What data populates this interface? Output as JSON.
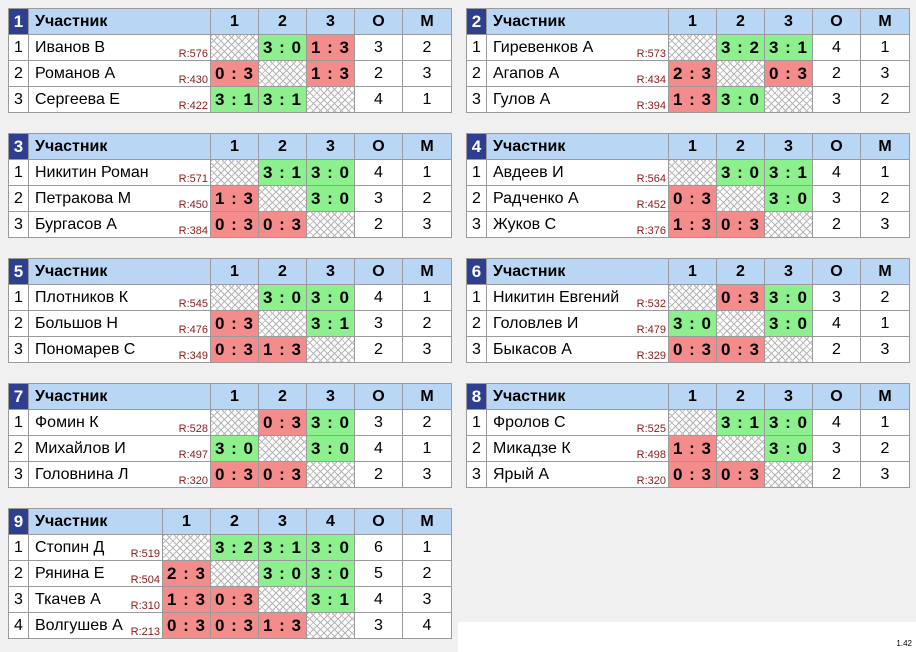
{
  "header": {
    "participant": "Участник",
    "points": "О",
    "place": "М"
  },
  "groups": [
    {
      "num": "1",
      "players": [
        {
          "row": "1",
          "name": "Иванов В",
          "rating": "R:576",
          "cells": [
            {
              "type": "self",
              "text": ""
            },
            {
              "type": "win",
              "text": "3 : 0"
            },
            {
              "type": "loss",
              "text": "1 : 3"
            }
          ],
          "points": "3",
          "place": "2"
        },
        {
          "row": "2",
          "name": "Романов А",
          "rating": "R:430",
          "cells": [
            {
              "type": "loss",
              "text": "0 : 3"
            },
            {
              "type": "self",
              "text": ""
            },
            {
              "type": "loss",
              "text": "1 : 3"
            }
          ],
          "points": "2",
          "place": "3"
        },
        {
          "row": "3",
          "name": "Сергеева Е",
          "rating": "R:422",
          "cells": [
            {
              "type": "win",
              "text": "3 : 1"
            },
            {
              "type": "win",
              "text": "3 : 1"
            },
            {
              "type": "self",
              "text": ""
            }
          ],
          "points": "4",
          "place": "1"
        }
      ]
    },
    {
      "num": "2",
      "players": [
        {
          "row": "1",
          "name": "Гиревенков А",
          "rating": "R:573",
          "cells": [
            {
              "type": "self",
              "text": ""
            },
            {
              "type": "win",
              "text": "3 : 2"
            },
            {
              "type": "win",
              "text": "3 : 1"
            }
          ],
          "points": "4",
          "place": "1"
        },
        {
          "row": "2",
          "name": "Агапов А",
          "rating": "R:434",
          "cells": [
            {
              "type": "loss",
              "text": "2 : 3"
            },
            {
              "type": "self",
              "text": ""
            },
            {
              "type": "loss",
              "text": "0 : 3"
            }
          ],
          "points": "2",
          "place": "3"
        },
        {
          "row": "3",
          "name": "Гулов А",
          "rating": "R:394",
          "cells": [
            {
              "type": "loss",
              "text": "1 : 3"
            },
            {
              "type": "win",
              "text": "3 : 0"
            },
            {
              "type": "self",
              "text": ""
            }
          ],
          "points": "3",
          "place": "2"
        }
      ]
    },
    {
      "num": "3",
      "players": [
        {
          "row": "1",
          "name": "Никитин Роман",
          "rating": "R:571",
          "cells": [
            {
              "type": "self",
              "text": ""
            },
            {
              "type": "win",
              "text": "3 : 1"
            },
            {
              "type": "win",
              "text": "3 : 0"
            }
          ],
          "points": "4",
          "place": "1"
        },
        {
          "row": "2",
          "name": "Петракова М",
          "rating": "R:450",
          "cells": [
            {
              "type": "loss",
              "text": "1 : 3"
            },
            {
              "type": "self",
              "text": ""
            },
            {
              "type": "win",
              "text": "3 : 0"
            }
          ],
          "points": "3",
          "place": "2"
        },
        {
          "row": "3",
          "name": "Бургасов А",
          "rating": "R:384",
          "cells": [
            {
              "type": "loss",
              "text": "0 : 3"
            },
            {
              "type": "loss",
              "text": "0 : 3"
            },
            {
              "type": "self",
              "text": ""
            }
          ],
          "points": "2",
          "place": "3"
        }
      ]
    },
    {
      "num": "4",
      "players": [
        {
          "row": "1",
          "name": "Авдеев И",
          "rating": "R:564",
          "cells": [
            {
              "type": "self",
              "text": ""
            },
            {
              "type": "win",
              "text": "3 : 0"
            },
            {
              "type": "win",
              "text": "3 : 1"
            }
          ],
          "points": "4",
          "place": "1"
        },
        {
          "row": "2",
          "name": "Радченко А",
          "rating": "R:452",
          "cells": [
            {
              "type": "loss",
              "text": "0 : 3"
            },
            {
              "type": "self",
              "text": ""
            },
            {
              "type": "win",
              "text": "3 : 0"
            }
          ],
          "points": "3",
          "place": "2"
        },
        {
          "row": "3",
          "name": "Жуков С",
          "rating": "R:376",
          "cells": [
            {
              "type": "loss",
              "text": "1 : 3"
            },
            {
              "type": "loss",
              "text": "0 : 3"
            },
            {
              "type": "self",
              "text": ""
            }
          ],
          "points": "2",
          "place": "3"
        }
      ]
    },
    {
      "num": "5",
      "players": [
        {
          "row": "1",
          "name": "Плотников К",
          "rating": "R:545",
          "cells": [
            {
              "type": "self",
              "text": ""
            },
            {
              "type": "win",
              "text": "3 : 0"
            },
            {
              "type": "win",
              "text": "3 : 0"
            }
          ],
          "points": "4",
          "place": "1"
        },
        {
          "row": "2",
          "name": "Большов Н",
          "rating": "R:476",
          "cells": [
            {
              "type": "loss",
              "text": "0 : 3"
            },
            {
              "type": "self",
              "text": ""
            },
            {
              "type": "win",
              "text": "3 : 1"
            }
          ],
          "points": "3",
          "place": "2"
        },
        {
          "row": "3",
          "name": "Пономарев С",
          "rating": "R:349",
          "cells": [
            {
              "type": "loss",
              "text": "0 : 3"
            },
            {
              "type": "loss",
              "text": "1 : 3"
            },
            {
              "type": "self",
              "text": ""
            }
          ],
          "points": "2",
          "place": "3"
        }
      ]
    },
    {
      "num": "6",
      "players": [
        {
          "row": "1",
          "name": "Никитин Евгений",
          "rating": "R:532",
          "cells": [
            {
              "type": "self",
              "text": ""
            },
            {
              "type": "loss",
              "text": "0 : 3"
            },
            {
              "type": "win",
              "text": "3 : 0"
            }
          ],
          "points": "3",
          "place": "2"
        },
        {
          "row": "2",
          "name": "Головлев И",
          "rating": "R:479",
          "cells": [
            {
              "type": "win",
              "text": "3 : 0"
            },
            {
              "type": "self",
              "text": ""
            },
            {
              "type": "win",
              "text": "3 : 0"
            }
          ],
          "points": "4",
          "place": "1"
        },
        {
          "row": "3",
          "name": "Быкасов А",
          "rating": "R:329",
          "cells": [
            {
              "type": "loss",
              "text": "0 : 3"
            },
            {
              "type": "loss",
              "text": "0 : 3"
            },
            {
              "type": "self",
              "text": ""
            }
          ],
          "points": "2",
          "place": "3"
        }
      ]
    },
    {
      "num": "7",
      "players": [
        {
          "row": "1",
          "name": "Фомин К",
          "rating": "R:528",
          "cells": [
            {
              "type": "self",
              "text": ""
            },
            {
              "type": "loss",
              "text": "0 : 3"
            },
            {
              "type": "win",
              "text": "3 : 0"
            }
          ],
          "points": "3",
          "place": "2"
        },
        {
          "row": "2",
          "name": "Михайлов И",
          "rating": "R:497",
          "cells": [
            {
              "type": "win",
              "text": "3 : 0"
            },
            {
              "type": "self",
              "text": ""
            },
            {
              "type": "win",
              "text": "3 : 0"
            }
          ],
          "points": "4",
          "place": "1"
        },
        {
          "row": "3",
          "name": "Головнина Л",
          "rating": "R:320",
          "cells": [
            {
              "type": "loss",
              "text": "0 : 3"
            },
            {
              "type": "loss",
              "text": "0 : 3"
            },
            {
              "type": "self",
              "text": ""
            }
          ],
          "points": "2",
          "place": "3"
        }
      ]
    },
    {
      "num": "8",
      "players": [
        {
          "row": "1",
          "name": "Фролов С",
          "rating": "R:525",
          "cells": [
            {
              "type": "self",
              "text": ""
            },
            {
              "type": "win",
              "text": "3 : 1"
            },
            {
              "type": "win",
              "text": "3 : 0"
            }
          ],
          "points": "4",
          "place": "1"
        },
        {
          "row": "2",
          "name": "Микадзе К",
          "rating": "R:498",
          "cells": [
            {
              "type": "loss",
              "text": "1 : 3"
            },
            {
              "type": "self",
              "text": ""
            },
            {
              "type": "win",
              "text": "3 : 0"
            }
          ],
          "points": "3",
          "place": "2"
        },
        {
          "row": "3",
          "name": "Ярый А",
          "rating": "R:320",
          "cells": [
            {
              "type": "loss",
              "text": "0 : 3"
            },
            {
              "type": "loss",
              "text": "0 : 3"
            },
            {
              "type": "self",
              "text": ""
            }
          ],
          "points": "2",
          "place": "3"
        }
      ]
    },
    {
      "num": "9",
      "players": [
        {
          "row": "1",
          "name": "Стопин Д",
          "rating": "R:519",
          "cells": [
            {
              "type": "self",
              "text": ""
            },
            {
              "type": "win",
              "text": "3 : 2"
            },
            {
              "type": "win",
              "text": "3 : 1"
            },
            {
              "type": "win",
              "text": "3 : 0"
            }
          ],
          "points": "6",
          "place": "1"
        },
        {
          "row": "2",
          "name": "Рянина Е",
          "rating": "R:504",
          "cells": [
            {
              "type": "loss",
              "text": "2 : 3"
            },
            {
              "type": "self",
              "text": ""
            },
            {
              "type": "win",
              "text": "3 : 0"
            },
            {
              "type": "win",
              "text": "3 : 0"
            }
          ],
          "points": "5",
          "place": "2"
        },
        {
          "row": "3",
          "name": "Ткачев А",
          "rating": "R:310",
          "cells": [
            {
              "type": "loss",
              "text": "1 : 3"
            },
            {
              "type": "loss",
              "text": "0 : 3"
            },
            {
              "type": "self",
              "text": ""
            },
            {
              "type": "win",
              "text": "3 : 1"
            }
          ],
          "points": "4",
          "place": "3"
        },
        {
          "row": "4",
          "name": "Волгушев А",
          "rating": "R:213",
          "cells": [
            {
              "type": "loss",
              "text": "0 : 3"
            },
            {
              "type": "loss",
              "text": "0 : 3"
            },
            {
              "type": "loss",
              "text": "1 : 3"
            },
            {
              "type": "self",
              "text": ""
            }
          ],
          "points": "3",
          "place": "4"
        }
      ]
    }
  ],
  "footer": {
    "stamp": "1.42"
  },
  "colors": {
    "win": "#8cf08c",
    "loss": "#f58c8c",
    "header": "#b9d7f4",
    "group_number": "#2f3f8f"
  }
}
